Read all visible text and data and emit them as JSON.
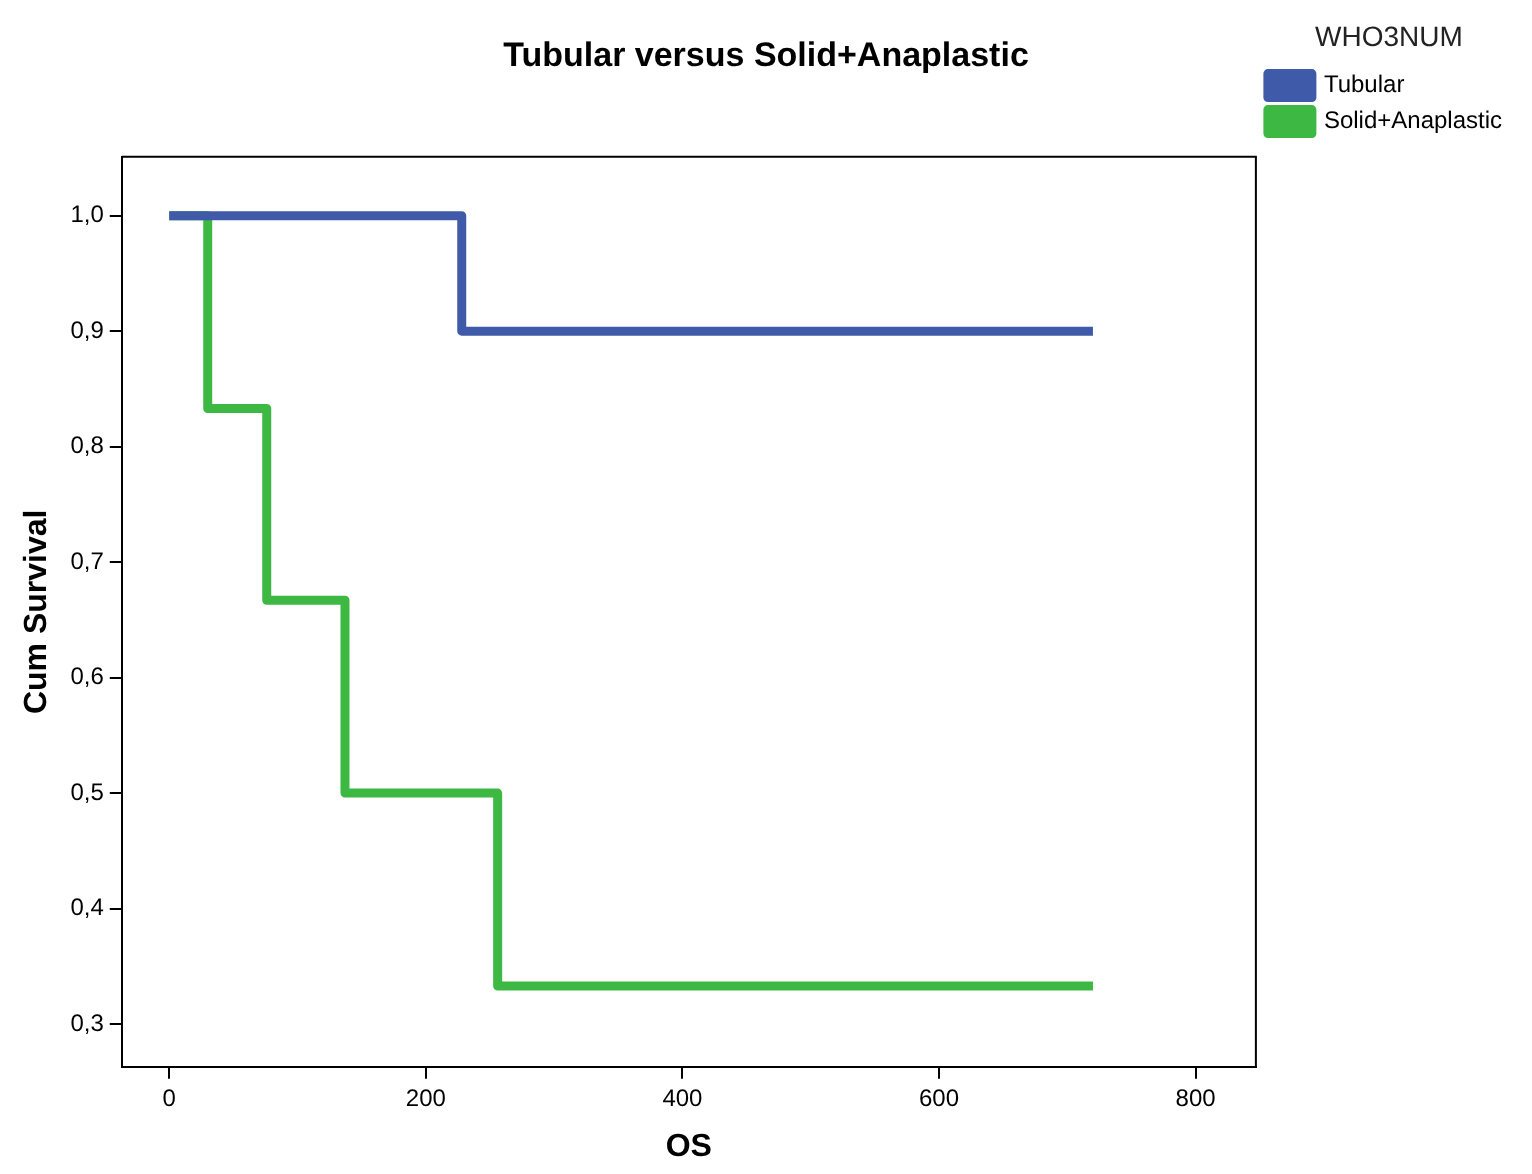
{
  "chart_data": {
    "type": "step",
    "title": "Tubular versus Solid+Anaplastic",
    "xlabel": "OS",
    "ylabel": "Cum Survival",
    "legend_title": "WHO3NUM",
    "legend": "top right",
    "series": [
      {
        "name": "Tubular",
        "color": "#3f5aa8",
        "x": [
          0,
          228,
          720
        ],
        "values": [
          1.0,
          0.9,
          0.9
        ]
      },
      {
        "name": "Solid+Anaplastic",
        "color": "#3cb843",
        "x": [
          0,
          30,
          76,
          137,
          256,
          720
        ],
        "values": [
          1.0,
          0.833,
          0.667,
          0.5,
          0.333,
          0.333
        ]
      }
    ],
    "xlim": [
      -37,
      847
    ],
    "xticks": [
      0,
      200,
      400,
      600,
      800
    ],
    "ylim": [
      0.263,
      1.051
    ],
    "yticks": [
      {
        "value": 0.3,
        "label": "0,3"
      },
      {
        "value": 0.4,
        "label": "0,4"
      },
      {
        "value": 0.5,
        "label": "0,5"
      },
      {
        "value": 0.6,
        "label": "0,6"
      },
      {
        "value": 0.7,
        "label": "0,7"
      },
      {
        "value": 0.8,
        "label": "0,8"
      },
      {
        "value": 0.9,
        "label": "0,9"
      },
      {
        "value": 1.0,
        "label": "1,0"
      }
    ],
    "grid": false,
    "marker": "none",
    "line_style": "solid"
  }
}
